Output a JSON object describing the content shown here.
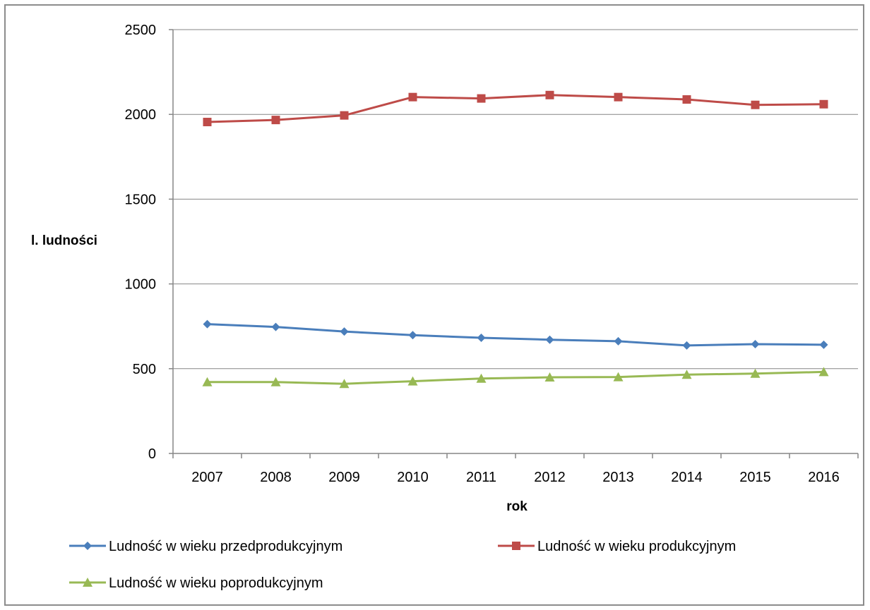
{
  "chart_data": {
    "type": "line",
    "xlabel": "rok",
    "ylabel": "l. ludności",
    "ylim": [
      0,
      2500
    ],
    "yticks": [
      0,
      500,
      1000,
      1500,
      2000,
      2500
    ],
    "categories": [
      "2007",
      "2008",
      "2009",
      "2010",
      "2011",
      "2012",
      "2013",
      "2014",
      "2015",
      "2016"
    ],
    "grid": "horizontal",
    "legend_position": "bottom",
    "series": [
      {
        "name": "Ludność w wieku przedprodukcyjnym",
        "color": "#4a7ebb",
        "marker": "diamond",
        "values": [
          763,
          746,
          719,
          698,
          682,
          671,
          662,
          637,
          645,
          641
        ]
      },
      {
        "name": "Ludność w wieku produkcyjnym",
        "color": "#be4b48",
        "marker": "square",
        "values": [
          1955,
          1967,
          1994,
          2102,
          2094,
          2114,
          2102,
          2088,
          2056,
          2060
        ]
      },
      {
        "name": "Ludność w wieku poprodukcyjnym",
        "color": "#98b954",
        "marker": "triangle",
        "values": [
          421,
          421,
          411,
          426,
          442,
          449,
          451,
          465,
          471,
          481
        ]
      }
    ]
  }
}
